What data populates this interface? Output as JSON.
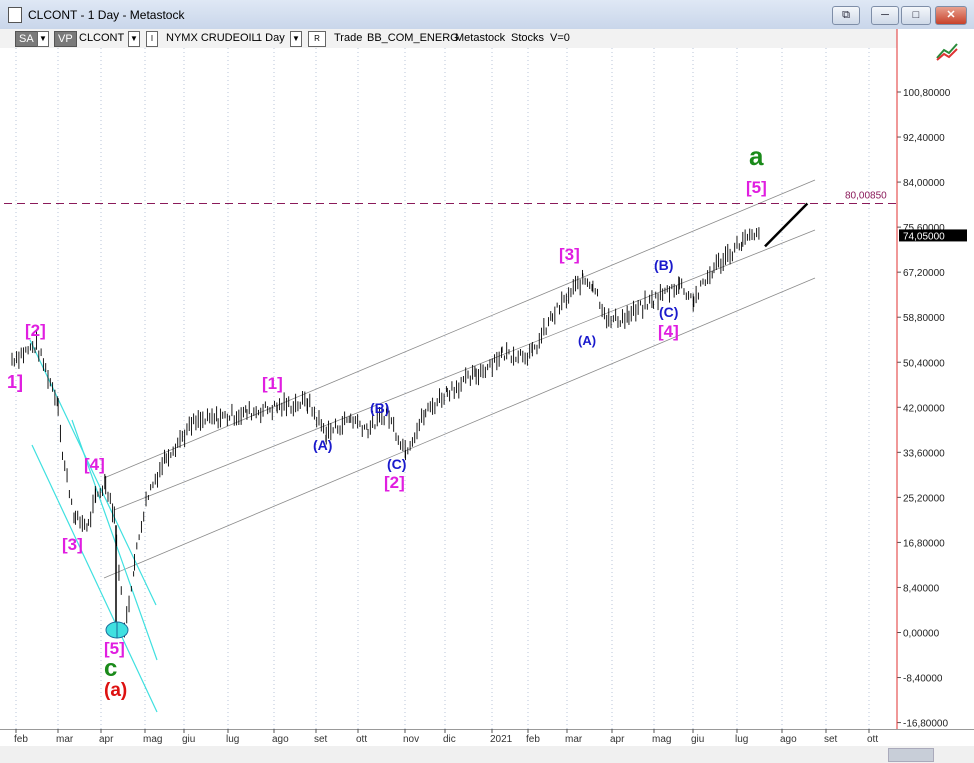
{
  "window": {
    "title": "CLCONT - 1 Day - Metastock",
    "buttons": [
      "⧉",
      "─",
      "□",
      "✕"
    ]
  },
  "toolbar": {
    "sa": "SA",
    "vp": "VP",
    "symbol": "CLCONT",
    "i_label": "I",
    "name": "NYMX CRUDEOIL",
    "period": "1 Day",
    "r_label": "R",
    "trade": "Trade",
    "source": "BB_COM_ENERG",
    "product": "Metastock",
    "stocks": "Stocks",
    "v": "V=0"
  },
  "icons": {
    "tool": "line-tool-icon"
  },
  "colors": {
    "magenta": "#e01ee0",
    "blue": "#1a1acc",
    "green": "#1a8a1a",
    "red": "#dd1111",
    "cyan": "#3fe0e0",
    "level": "#8a1a5a"
  },
  "chart_data": {
    "type": "bar",
    "ylim": [
      -16.8,
      109.2
    ],
    "y_ticks": [
      100.8,
      92.4,
      84,
      75.6,
      67.2,
      58.8,
      50.4,
      42,
      33.6,
      25.2,
      16.8,
      8.4,
      0,
      -8.4,
      -16.8
    ],
    "y_tick_labels": [
      "100,80000",
      "92,40000",
      "84,00000",
      "75,60000",
      "67,20000",
      "58,80000",
      "50,40000",
      "42,00000",
      "33,60000",
      "25,20000",
      "16,80000",
      "8,40000",
      "0,00000",
      "-8,40000",
      "-16,80000"
    ],
    "x_tick_labels": [
      "feb",
      "mar",
      "apr",
      "mag",
      "giu",
      "lug",
      "ago",
      "set",
      "ott",
      "nov",
      "dic",
      "2021",
      "feb",
      "mar",
      "apr",
      "mag",
      "giu",
      "lug",
      "ago",
      "set",
      "ott"
    ],
    "last_price": "74,05000",
    "target_level": "80,00850",
    "price_path": [
      [
        "2020-02-03",
        51
      ],
      [
        "2020-02-20",
        53.5
      ],
      [
        "2020-03-06",
        43
      ],
      [
        "2020-03-09",
        33
      ],
      [
        "2020-03-18",
        21
      ],
      [
        "2020-03-27",
        20
      ],
      [
        "2020-04-01",
        25
      ],
      [
        "2020-04-08",
        28
      ],
      [
        "2020-04-14",
        22
      ],
      [
        "2020-04-21",
        0
      ],
      [
        "2020-04-28",
        13
      ],
      [
        "2020-05-06",
        25
      ],
      [
        "2020-05-20",
        33
      ],
      [
        "2020-06-08",
        39
      ],
      [
        "2020-06-25",
        40
      ],
      [
        "2020-07-15",
        41
      ],
      [
        "2020-08-05",
        42
      ],
      [
        "2020-08-26",
        43
      ],
      [
        "2020-09-08",
        37
      ],
      [
        "2020-09-25",
        40
      ],
      [
        "2020-10-07",
        38
      ],
      [
        "2020-10-20",
        41
      ],
      [
        "2020-11-02",
        34
      ],
      [
        "2020-11-16",
        41
      ],
      [
        "2020-12-01",
        45
      ],
      [
        "2020-12-21",
        48
      ],
      [
        "2021-01-08",
        52
      ],
      [
        "2021-01-29",
        52
      ],
      [
        "2021-02-12",
        59
      ],
      [
        "2021-03-05",
        66
      ],
      [
        "2021-03-12",
        65
      ],
      [
        "2021-03-23",
        58
      ],
      [
        "2021-04-06",
        59
      ],
      [
        "2021-04-23",
        62
      ],
      [
        "2021-05-11",
        65
      ],
      [
        "2021-05-21",
        62
      ],
      [
        "2021-06-04",
        68
      ],
      [
        "2021-06-24",
        73
      ],
      [
        "2021-07-06",
        74.05
      ]
    ],
    "projection": [
      [
        "2021-07-08",
        72
      ],
      [
        "2021-08-05",
        80
      ]
    ],
    "wave_labels": [
      {
        "text": "1]",
        "color": "magenta"
      },
      {
        "text": "[2]",
        "color": "magenta"
      },
      {
        "text": "[3]",
        "color": "magenta"
      },
      {
        "text": "[4]",
        "color": "magenta"
      },
      {
        "text": "[5]",
        "color": "magenta"
      },
      {
        "text": "c",
        "color": "green"
      },
      {
        "text": "(a)",
        "color": "red"
      },
      {
        "text": "[1]",
        "color": "magenta"
      },
      {
        "text": "(A)",
        "color": "blue"
      },
      {
        "text": "(B)",
        "color": "blue"
      },
      {
        "text": "(C)",
        "color": "blue"
      },
      {
        "text": "[2]",
        "color": "magenta"
      },
      {
        "text": "[3]",
        "color": "magenta"
      },
      {
        "text": "(A)",
        "color": "blue"
      },
      {
        "text": "(B)",
        "color": "blue"
      },
      {
        "text": "(C)",
        "color": "blue"
      },
      {
        "text": "[4]",
        "color": "magenta"
      },
      {
        "text": "[5]",
        "color": "magenta"
      },
      {
        "text": "a",
        "color": "green"
      }
    ]
  }
}
